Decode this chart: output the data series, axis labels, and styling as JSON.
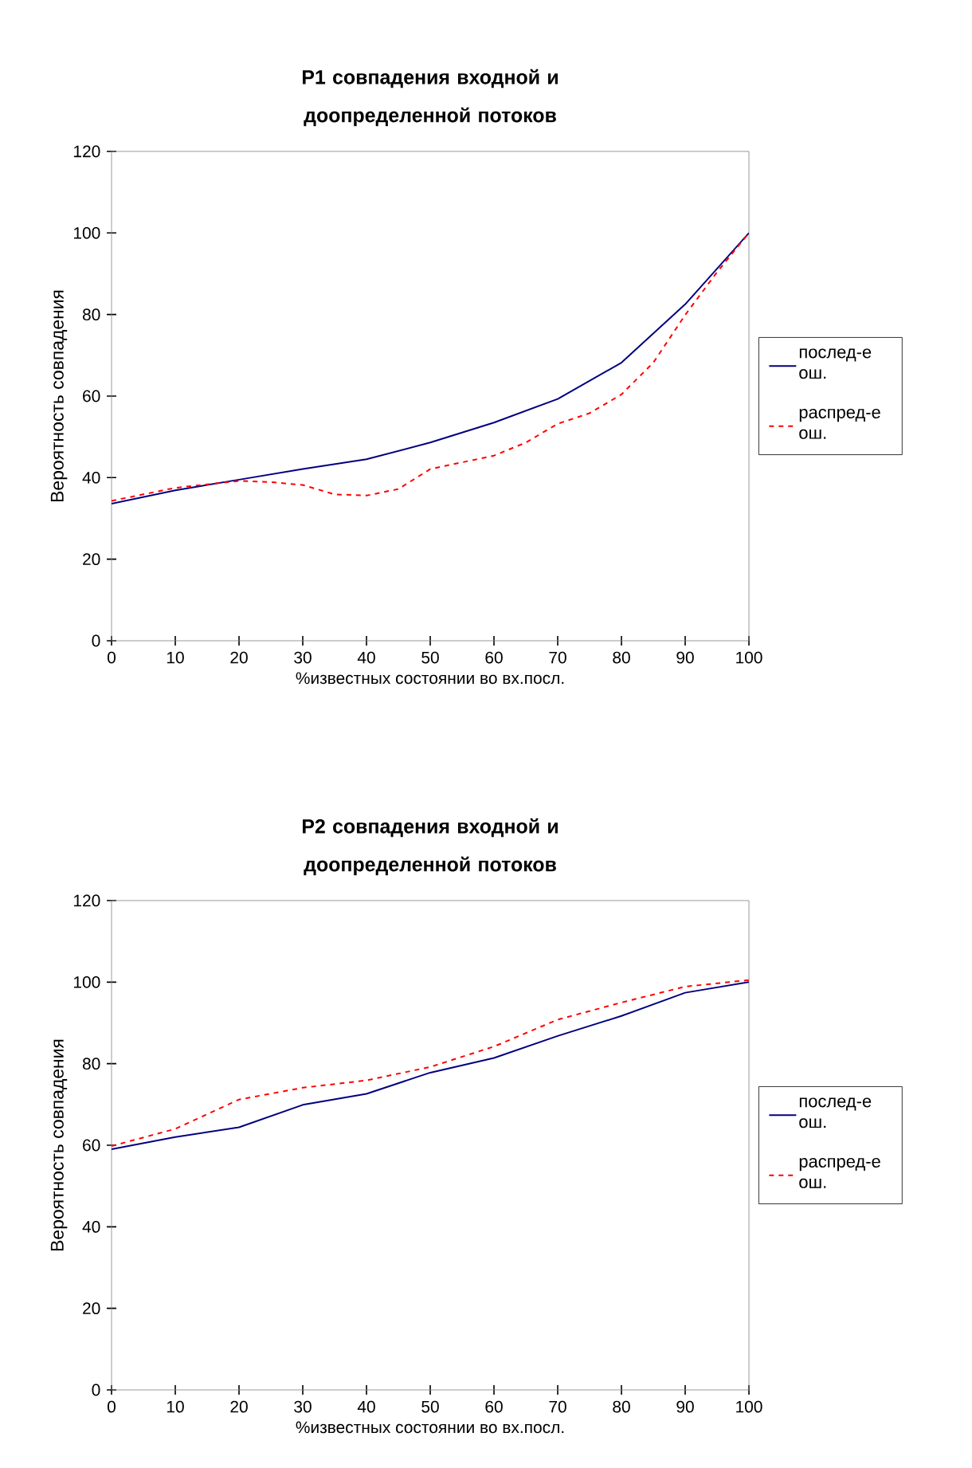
{
  "chart_data": [
    {
      "type": "line",
      "title": "P1 совпадения входной и доопределенной потоков",
      "xlabel": "%известных состоянии во вх.посл.",
      "ylabel": "Вероятность совпадения",
      "xlim": [
        0,
        100
      ],
      "xticks": [
        0,
        10,
        20,
        30,
        40,
        50,
        60,
        70,
        80,
        90,
        100
      ],
      "ylim": [
        0,
        120
      ],
      "yticks": [
        0,
        20,
        40,
        60,
        80,
        100,
        120
      ],
      "legend": "right",
      "series": [
        {
          "name": "послед-е ош.",
          "color": "#000080",
          "line_style": "solid",
          "x": [
            0,
            10,
            20,
            30,
            40,
            50,
            60,
            70,
            80,
            90,
            100
          ],
          "values": [
            33.6,
            36.9,
            39.5,
            42.1,
            44.5,
            48.6,
            53.5,
            59.3,
            68.2,
            82.5,
            100
          ]
        },
        {
          "name": "распред-е ош.",
          "color": "#ff0000",
          "line_style": "dashed",
          "x": [
            0,
            10,
            20,
            25,
            30,
            35,
            40,
            45,
            50,
            60,
            65,
            70,
            75,
            80,
            85,
            90,
            95,
            100
          ],
          "values": [
            34.3,
            37.5,
            39.2,
            38.9,
            38.2,
            35.9,
            35.6,
            37.2,
            42.1,
            45.4,
            48.6,
            53.2,
            55.8,
            60.4,
            68.2,
            79.9,
            90.4,
            100
          ]
        }
      ]
    },
    {
      "type": "line",
      "title": "P2 совпадения входной и доопределенной потоков",
      "xlabel": "%известных состоянии во вх.посл.",
      "ylabel": "Вероятность совпадения",
      "xlim": [
        0,
        100
      ],
      "xticks": [
        0,
        10,
        20,
        30,
        40,
        50,
        60,
        70,
        80,
        90,
        100
      ],
      "ylim": [
        0,
        120
      ],
      "yticks": [
        0,
        20,
        40,
        60,
        80,
        100,
        120
      ],
      "legend": "right",
      "series": [
        {
          "name": "послед-е ош.",
          "color": "#000080",
          "line_style": "solid",
          "x": [
            0,
            10,
            20,
            30,
            40,
            50,
            60,
            70,
            80,
            90,
            100
          ],
          "values": [
            59.0,
            62.0,
            64.4,
            69.9,
            72.6,
            77.8,
            81.4,
            86.8,
            91.7,
            97.4,
            100
          ]
        },
        {
          "name": "распред-е ош.",
          "color": "#ff0000",
          "line_style": "dashed",
          "x": [
            0,
            10,
            20,
            30,
            40,
            50,
            60,
            70,
            80,
            90,
            100
          ],
          "values": [
            59.8,
            64.0,
            71.2,
            74.1,
            75.9,
            79.2,
            84.2,
            90.8,
            95.0,
            98.9,
            100.5
          ]
        }
      ]
    }
  ]
}
